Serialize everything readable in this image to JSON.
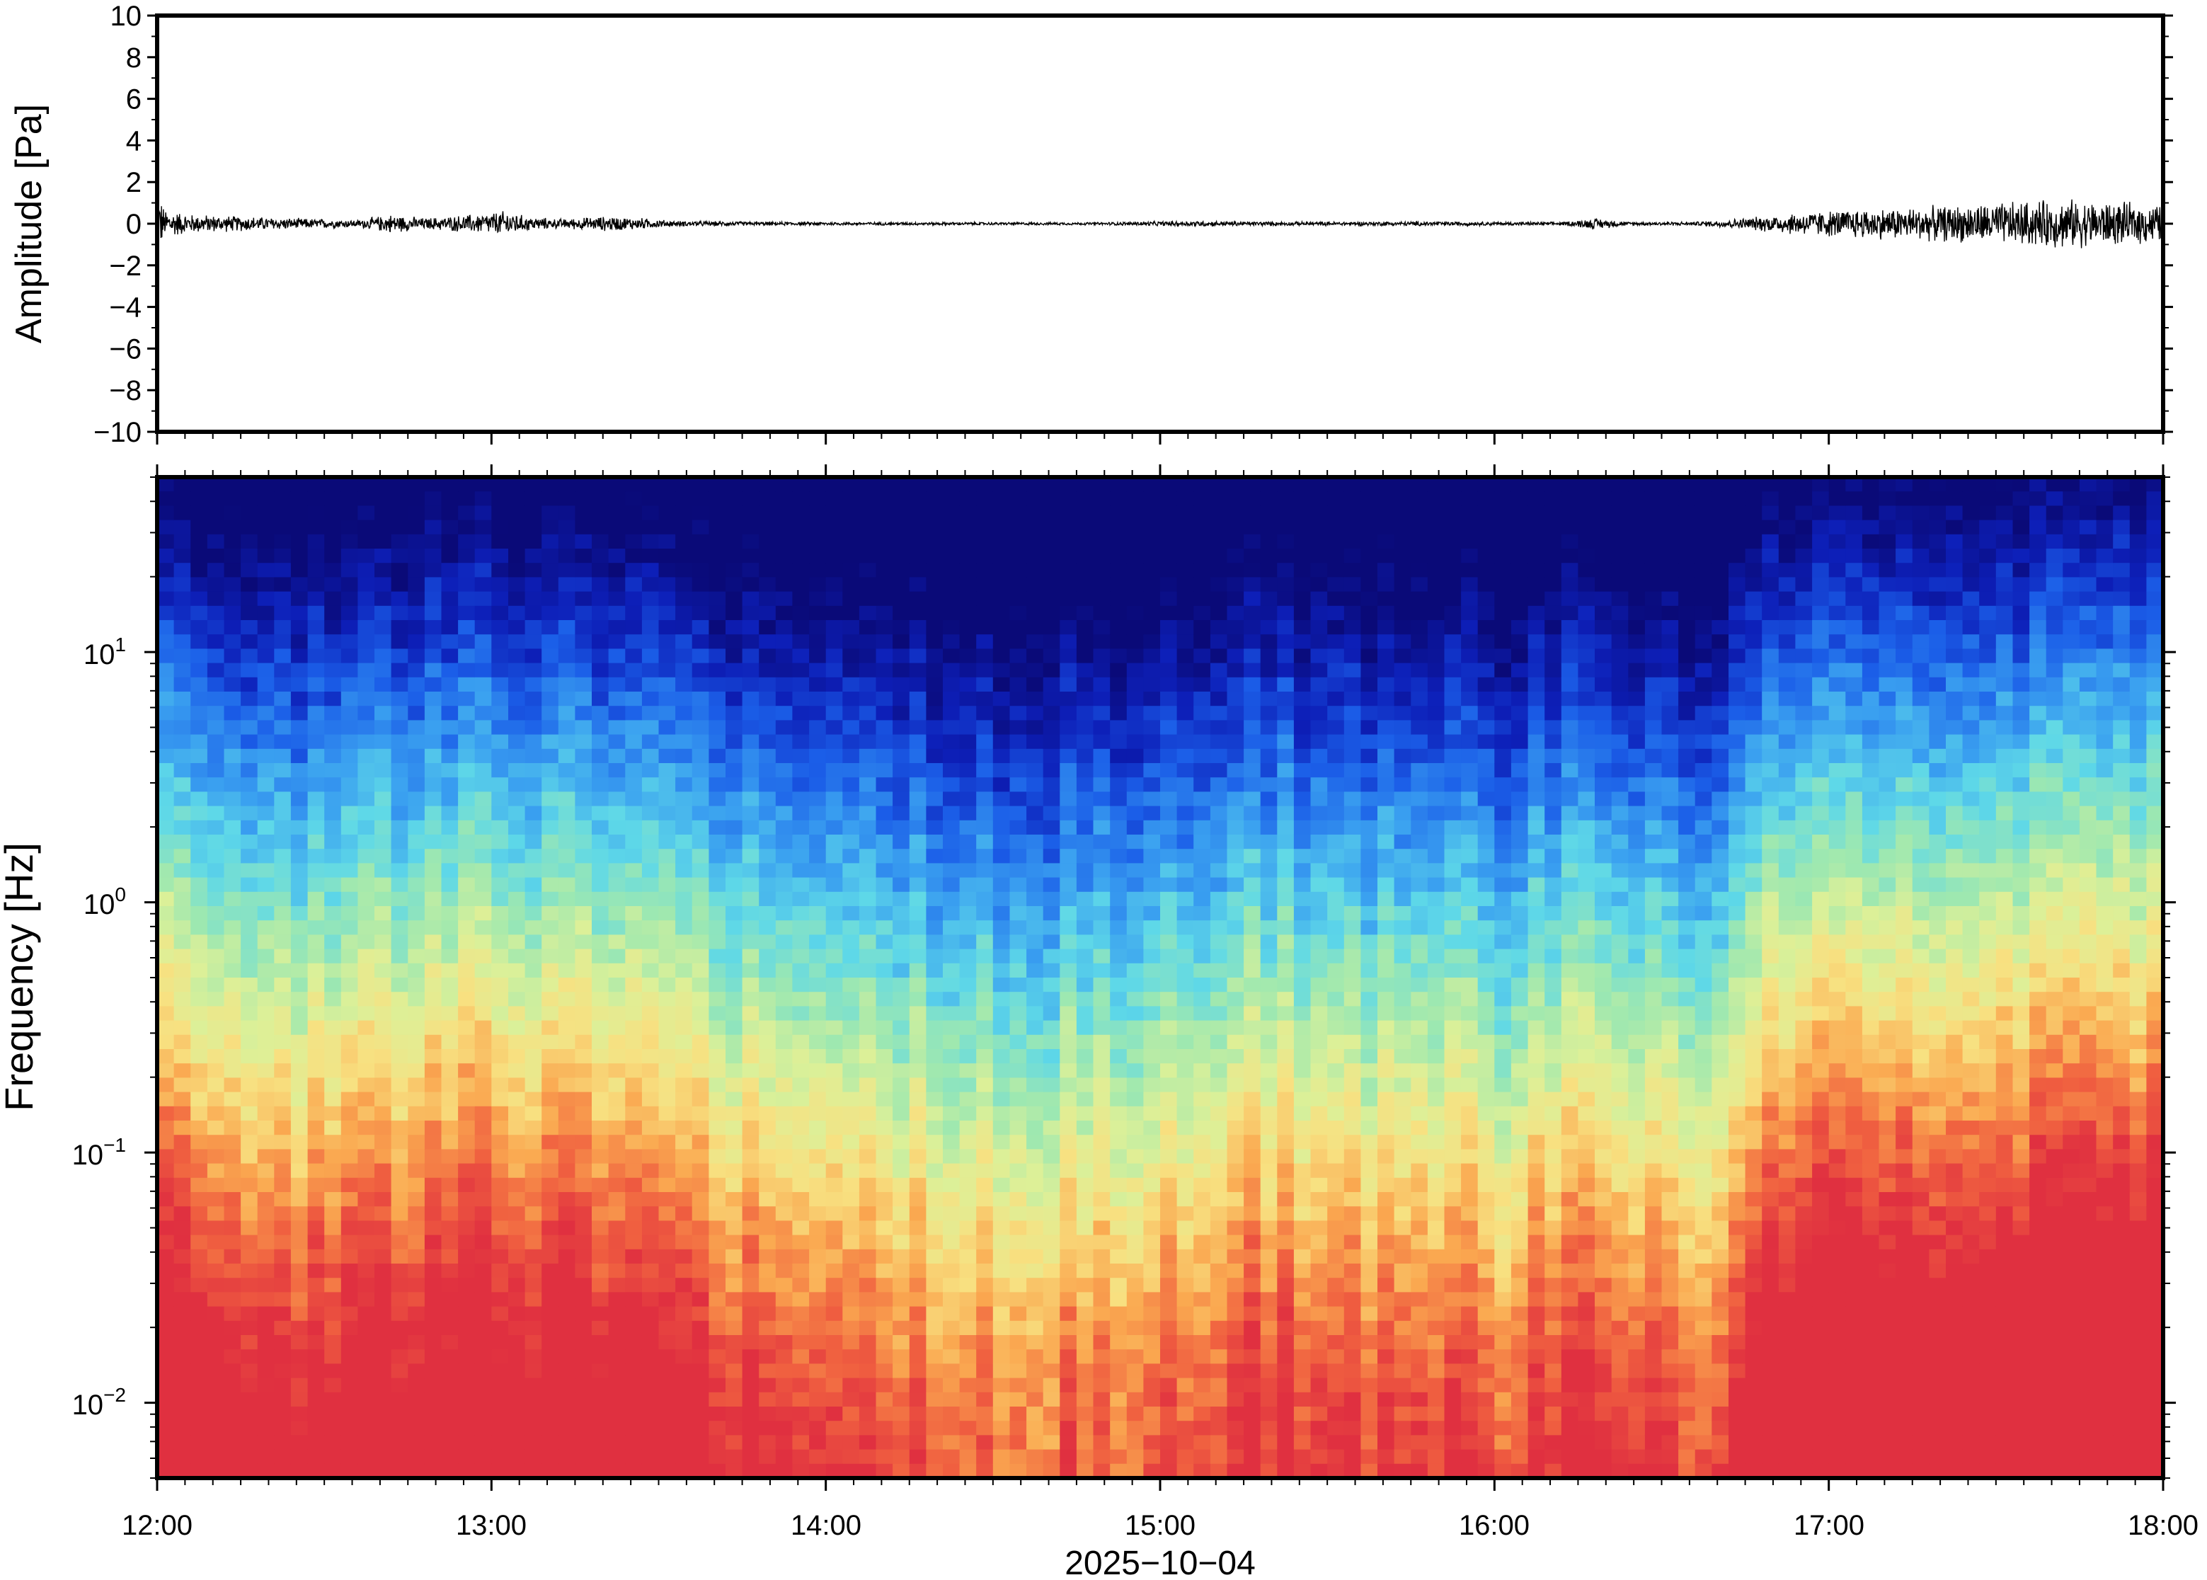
{
  "chart_data": [
    {
      "type": "line",
      "panel": "waveform",
      "ylabel": "Amplitude [Pa]",
      "ylim": [
        -10,
        10
      ],
      "yticks": [
        10,
        8,
        6,
        4,
        2,
        0,
        -2,
        -4,
        -6,
        -8,
        -10
      ],
      "ytick_labels": [
        "10",
        "8",
        "6",
        "4",
        "2",
        "0",
        "−2",
        "−4",
        "−6",
        "−8",
        "−10"
      ],
      "x_hours": [
        12,
        18
      ],
      "line_color": "#000000",
      "envelope": {
        "time_h": [
          12.0,
          12.02,
          12.1,
          12.25,
          12.4,
          12.6,
          12.7,
          12.8,
          12.95,
          13.05,
          13.1,
          13.2,
          13.35,
          13.45,
          13.55,
          13.8,
          14.2,
          14.8,
          15.1,
          15.4,
          15.8,
          16.2,
          16.3,
          16.4,
          16.6,
          16.75,
          16.9,
          17.1,
          17.3,
          17.5,
          17.7,
          17.9,
          18.0
        ],
        "half_amplitude_pa": [
          2.0,
          0.8,
          0.5,
          0.4,
          0.3,
          0.2,
          0.5,
          0.3,
          0.5,
          0.7,
          0.4,
          0.25,
          0.4,
          0.3,
          0.15,
          0.1,
          0.08,
          0.07,
          0.15,
          0.1,
          0.12,
          0.08,
          0.3,
          0.1,
          0.1,
          0.3,
          0.6,
          0.8,
          0.9,
          1.1,
          1.3,
          1.1,
          1.0
        ]
      }
    },
    {
      "type": "heatmap",
      "panel": "spectrogram",
      "ylabel": "Frequency [Hz]",
      "yscale": "log",
      "ylim": [
        0.005,
        50
      ],
      "ytick_labels": [
        {
          "value": 10,
          "base": "10",
          "exp": "1"
        },
        {
          "value": 1,
          "base": "10",
          "exp": "0"
        },
        {
          "value": 0.1,
          "base": "10",
          "exp": "−1"
        },
        {
          "value": 0.01,
          "base": "10",
          "exp": "−2"
        }
      ],
      "xlabel": "2025−10−04",
      "x_hours": [
        12,
        18
      ],
      "xtick_labels": [
        "12:00",
        "13:00",
        "14:00",
        "15:00",
        "16:00",
        "17:00",
        "18:00"
      ],
      "colormap": [
        "#0a0a78",
        "#0d1fb8",
        "#1b5ee8",
        "#3aa0f0",
        "#5ed8e8",
        "#9ee8b0",
        "#dcf098",
        "#f8e080",
        "#faa850",
        "#f06040",
        "#e03040"
      ],
      "power_model": {
        "time_h": [
          12.0,
          12.5,
          12.9,
          13.3,
          13.8,
          14.5,
          15.0,
          15.3,
          15.7,
          16.0,
          16.3,
          16.6,
          16.8,
          17.0,
          17.5,
          18.0
        ],
        "activity": [
          0.85,
          0.65,
          0.85,
          0.72,
          0.5,
          0.3,
          0.35,
          0.55,
          0.45,
          0.4,
          0.6,
          0.3,
          0.8,
          0.9,
          0.95,
          1.0
        ]
      }
    }
  ]
}
